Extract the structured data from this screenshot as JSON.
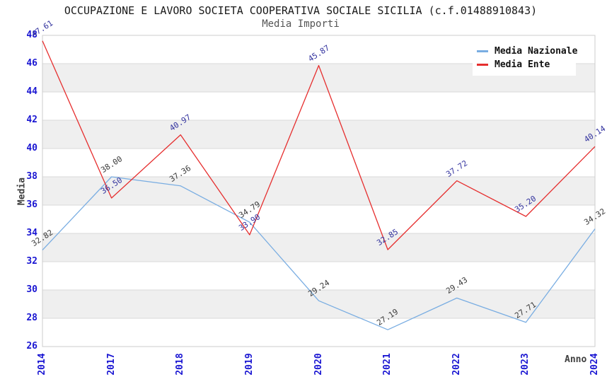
{
  "header": {
    "title": "OCCUPAZIONE E LAVORO SOCIETA COOPERATIVA SOCIALE SICILIA (c.f.01488910843)",
    "subtitle": "Media Importi"
  },
  "axes": {
    "y_label": "Media",
    "x_label": "Anno",
    "y_ticks": [
      26,
      28,
      30,
      32,
      34,
      36,
      38,
      40,
      42,
      44,
      46,
      48
    ],
    "x_ticks": [
      "2014",
      "2017",
      "2018",
      "2019",
      "2020",
      "2021",
      "2022",
      "2023",
      "2024"
    ]
  },
  "colors": {
    "nazionale_line": "#79ade2",
    "ente_line": "#e62e2e",
    "tick_label": "#1a16d2",
    "nazionale_point_label": "#3a3a3a",
    "ente_point_label": "#32329e",
    "band_gray": "#efefef",
    "gridline": "#d9d9d9",
    "plot_border": "#cccccc"
  },
  "chart_data": {
    "type": "line",
    "title": "OCCUPAZIONE E LAVORO SOCIETA COOPERATIVA SOCIALE SICILIA (c.f.01488910843)",
    "subtitle": "Media Importi",
    "xlabel": "Anno",
    "ylabel": "Media",
    "x": [
      "2014",
      "2017",
      "2018",
      "2019",
      "2020",
      "2021",
      "2022",
      "2023",
      "2024"
    ],
    "series": [
      {
        "name": "Media Nazionale",
        "color": "#79ade2",
        "label_color": "#3a3a3a",
        "values": [
          32.82,
          38.0,
          37.36,
          34.79,
          29.24,
          27.19,
          29.43,
          27.71,
          34.32
        ]
      },
      {
        "name": "Media Ente",
        "color": "#e62e2e",
        "label_color": "#32329e",
        "values": [
          47.61,
          36.5,
          40.97,
          33.9,
          45.87,
          32.85,
          37.72,
          35.2,
          40.14
        ]
      }
    ],
    "ylim": [
      26,
      48
    ],
    "y_tick_step": 2,
    "grid": "horizontal-bands-alternating",
    "point_labels": "values with 2 decimals, rotated",
    "legend_position": "top-right"
  }
}
